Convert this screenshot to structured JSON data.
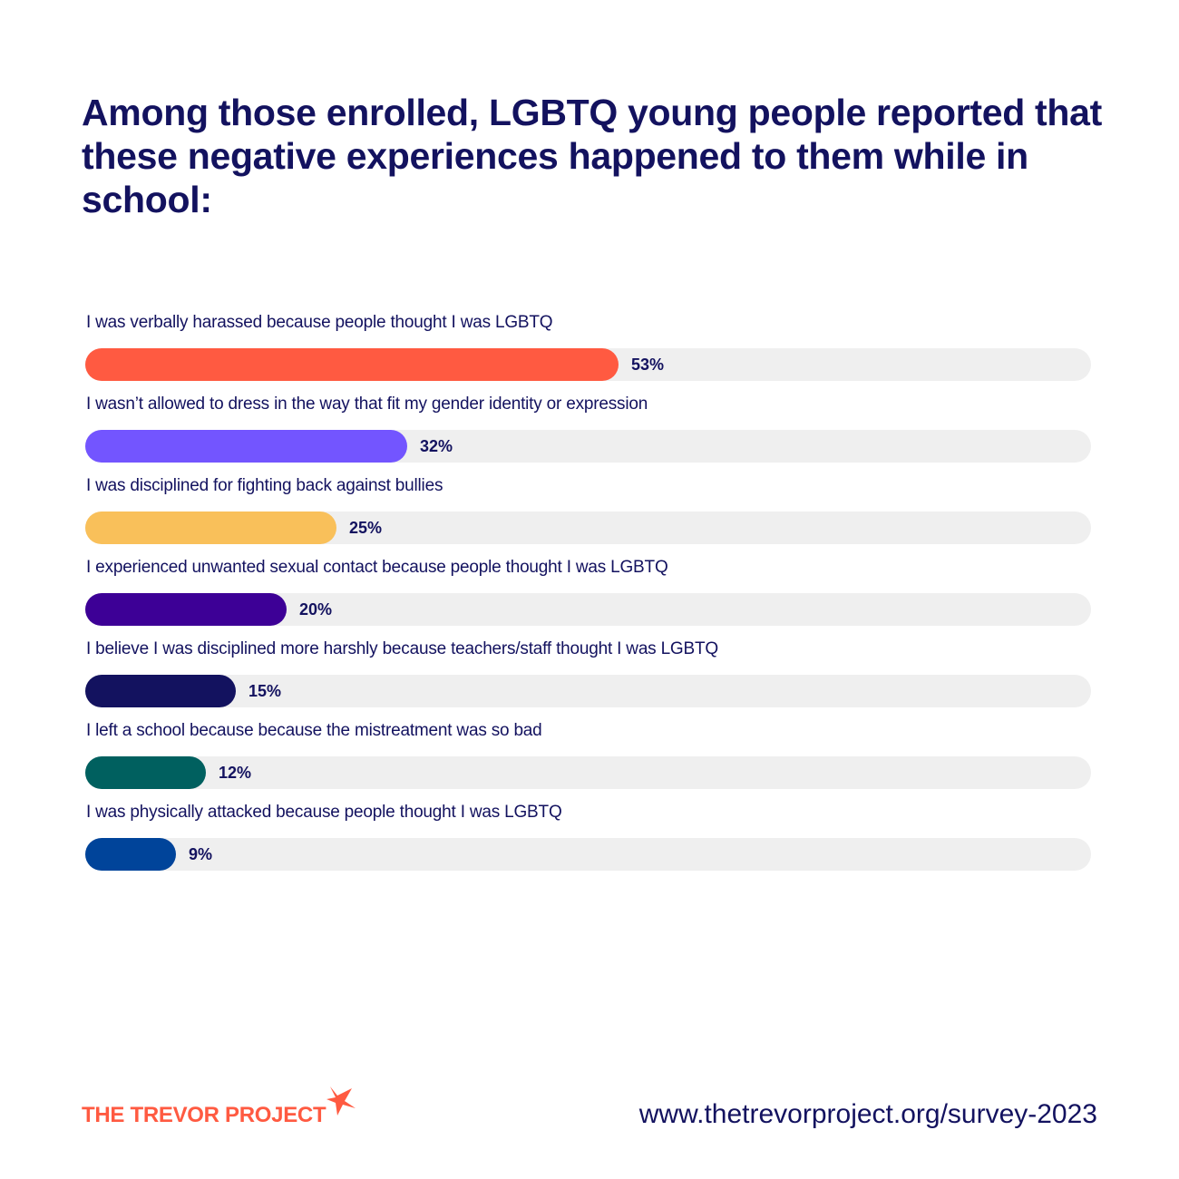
{
  "chart_data": {
    "type": "bar",
    "orientation": "horizontal",
    "title": "Among those enrolled, LGBTQ young people reported that these negative experiences happened to them while in school:",
    "xlim": [
      0,
      100
    ],
    "unit": "%",
    "categories": [
      "I was verbally harassed because people thought I was LGBTQ",
      "I wasn’t allowed to dress in the way that fit my gender identity or expression",
      "I was disciplined for fighting back against bullies",
      "I experienced unwanted sexual contact because people thought I was LGBTQ",
      "I believe I was disciplined more harshly because teachers/staff thought I was LGBTQ",
      "I left a school because because the mistreatment was so bad",
      "I was physically attacked because people thought I was LGBTQ"
    ],
    "values": [
      53,
      32,
      25,
      20,
      15,
      12,
      9
    ],
    "value_labels": [
      "53%",
      "32%",
      "25%",
      "20%",
      "15%",
      "12%",
      "9%"
    ],
    "colors": [
      "#ff5a41",
      "#7355ff",
      "#f9c05a",
      "#3d0096",
      "#13125f",
      "#00605f",
      "#00449a"
    ],
    "track_color": "#efefef"
  },
  "footer": {
    "logo_text": "THE TREVOR PROJECT",
    "url": "www.thetrevorproject.org/survey-2023"
  }
}
